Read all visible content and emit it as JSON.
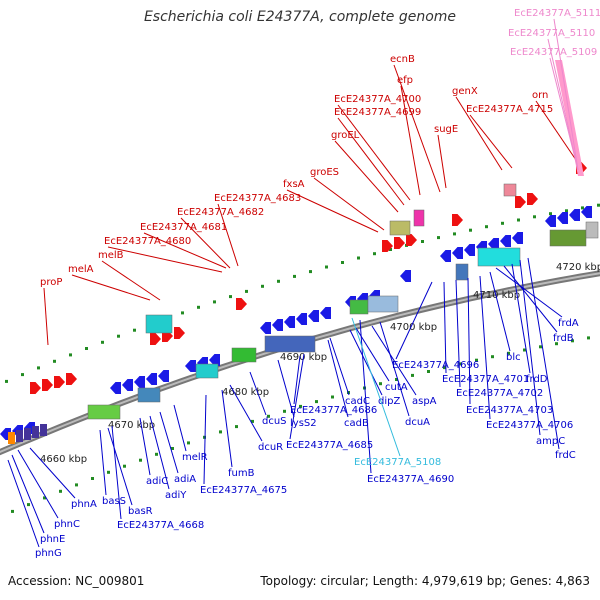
{
  "title": "Escherichia coli E24377A, complete genome",
  "footer": {
    "accession": "Accession: NC_009801",
    "summary": "Topology: circular; Length: 4,979,619 bp; Genes: 4,863"
  },
  "colors": {
    "backbone": "#888888",
    "upper_labels": "#cc0000",
    "lower_labels": "#0000cc",
    "pink_labels": "#ee88cc",
    "cyan_label": "#33bbdd",
    "tick_green": "#228b22"
  },
  "kbp_labels": [
    "4660 kbp",
    "4670 kbp",
    "4680 kbp",
    "4690 kbp",
    "4700 kbp",
    "4710 kbp",
    "4720 kbp"
  ],
  "upper_genes": [
    "proP",
    "melA",
    "melB",
    "EcE24377A_4680",
    "EcE24377A_4681",
    "EcE24377A_4682",
    "EcE24377A_4683",
    "fxsA",
    "groES",
    "groEL",
    "EcE24377A_4699",
    "EcE24377A_4700",
    "efp",
    "ecnB",
    "sugE",
    "genX",
    "EcE24377A_4715",
    "orn"
  ],
  "pink_genes": [
    "EcE24377A_5111",
    "EcE24377A_5110",
    "EcE24377A_5109"
  ],
  "lower_genes": [
    "phnG",
    "phnE",
    "phnC",
    "phnA",
    "basS",
    "basR",
    "EcE24377A_4668",
    "adiC",
    "adiY",
    "adiA",
    "melR",
    "EcE24377A_4675",
    "fumB",
    "dcuR",
    "dcuS",
    "lysS2",
    "EcE24377A_4686",
    "EcE24377A_4685",
    "cadB",
    "cadC",
    "dipZ",
    "cutA",
    "aspA",
    "dcuA",
    "EcE24377A_4690",
    "EcE24377A_4696",
    "EcE24377A_4701",
    "EcE24377A_4702",
    "EcE24377A_4703",
    "EcE24377A_4706",
    "blc",
    "frdA",
    "frdB",
    "frdD",
    "ampC",
    "frdC"
  ],
  "cyan_genes": [
    "EcE24377A_5108"
  ]
}
